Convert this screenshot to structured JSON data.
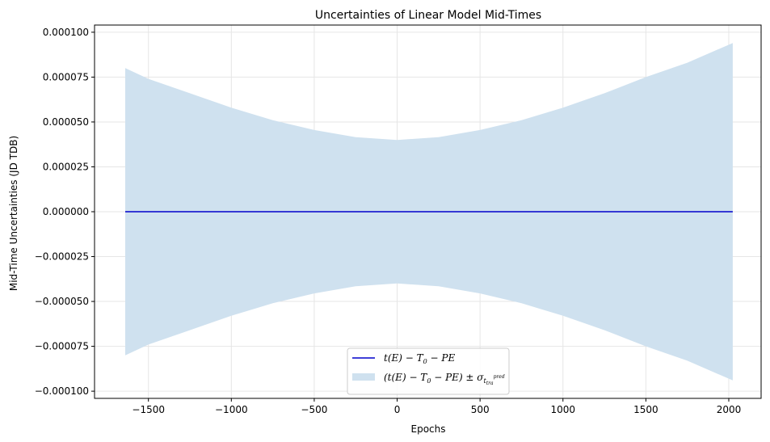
{
  "chart_data": {
    "type": "line",
    "title": "Uncertainties of Linear Model Mid-Times",
    "xlabel": "Epochs",
    "ylabel": "Mid-Time Uncertainties (JD TDB)",
    "xlim": [
      -1825,
      2195
    ],
    "ylim": [
      -0.000104,
      0.000104
    ],
    "xticks": [
      -1500,
      -1000,
      -500,
      0,
      500,
      1000,
      1500,
      2000
    ],
    "xtick_labels": [
      "−1500",
      "−1000",
      "−500",
      "0",
      "500",
      "1000",
      "1500",
      "2000"
    ],
    "yticks": [
      0.0001,
      7.5e-05,
      5e-05,
      2.5e-05,
      0.0,
      -2.5e-05,
      -5e-05,
      -7.5e-05,
      -0.0001
    ],
    "ytick_labels": [
      "0.000100",
      "0.000075",
      "0.000050",
      "0.000025",
      "0.000000",
      "−0.000025",
      "−0.000050",
      "−0.000075",
      "−0.000100"
    ],
    "grid": true,
    "legend_position": "lower center",
    "series": [
      {
        "name": "t(E) − T0 − PE",
        "kind": "line",
        "color": "#0000cc",
        "x": [
          -1640,
          2024
        ],
        "y": [
          0.0,
          0.0
        ]
      },
      {
        "name": "(t(E) − T0 − PE) ± σ t tra pred",
        "kind": "band",
        "color": "#cfe1ef",
        "x": [
          -1640,
          -1500,
          -1250,
          -1000,
          -750,
          -500,
          -250,
          0,
          250,
          500,
          750,
          1000,
          1250,
          1500,
          1750,
          2024
        ],
        "upper": [
          8e-05,
          7.4e-05,
          6.6e-05,
          5.8e-05,
          5.1e-05,
          4.55e-05,
          4.15e-05,
          4e-05,
          4.15e-05,
          4.55e-05,
          5.1e-05,
          5.8e-05,
          6.6e-05,
          7.5e-05,
          8.3e-05,
          9.4e-05
        ],
        "lower": [
          -8e-05,
          -7.4e-05,
          -6.6e-05,
          -5.8e-05,
          -5.1e-05,
          -4.55e-05,
          -4.15e-05,
          -4e-05,
          -4.15e-05,
          -4.55e-05,
          -5.1e-05,
          -5.8e-05,
          -6.6e-05,
          -7.5e-05,
          -8.3e-05,
          -9.4e-05
        ]
      }
    ],
    "legend": {
      "line_label": {
        "a": "t(E) − T",
        "sub": "0",
        "b": " − PE"
      },
      "band_label": {
        "a": "(t(E) − T",
        "sub": "0",
        "b": " − PE) ± σ",
        "sub2": "t",
        "sub3": "tra",
        "sup3": "pred"
      }
    }
  }
}
